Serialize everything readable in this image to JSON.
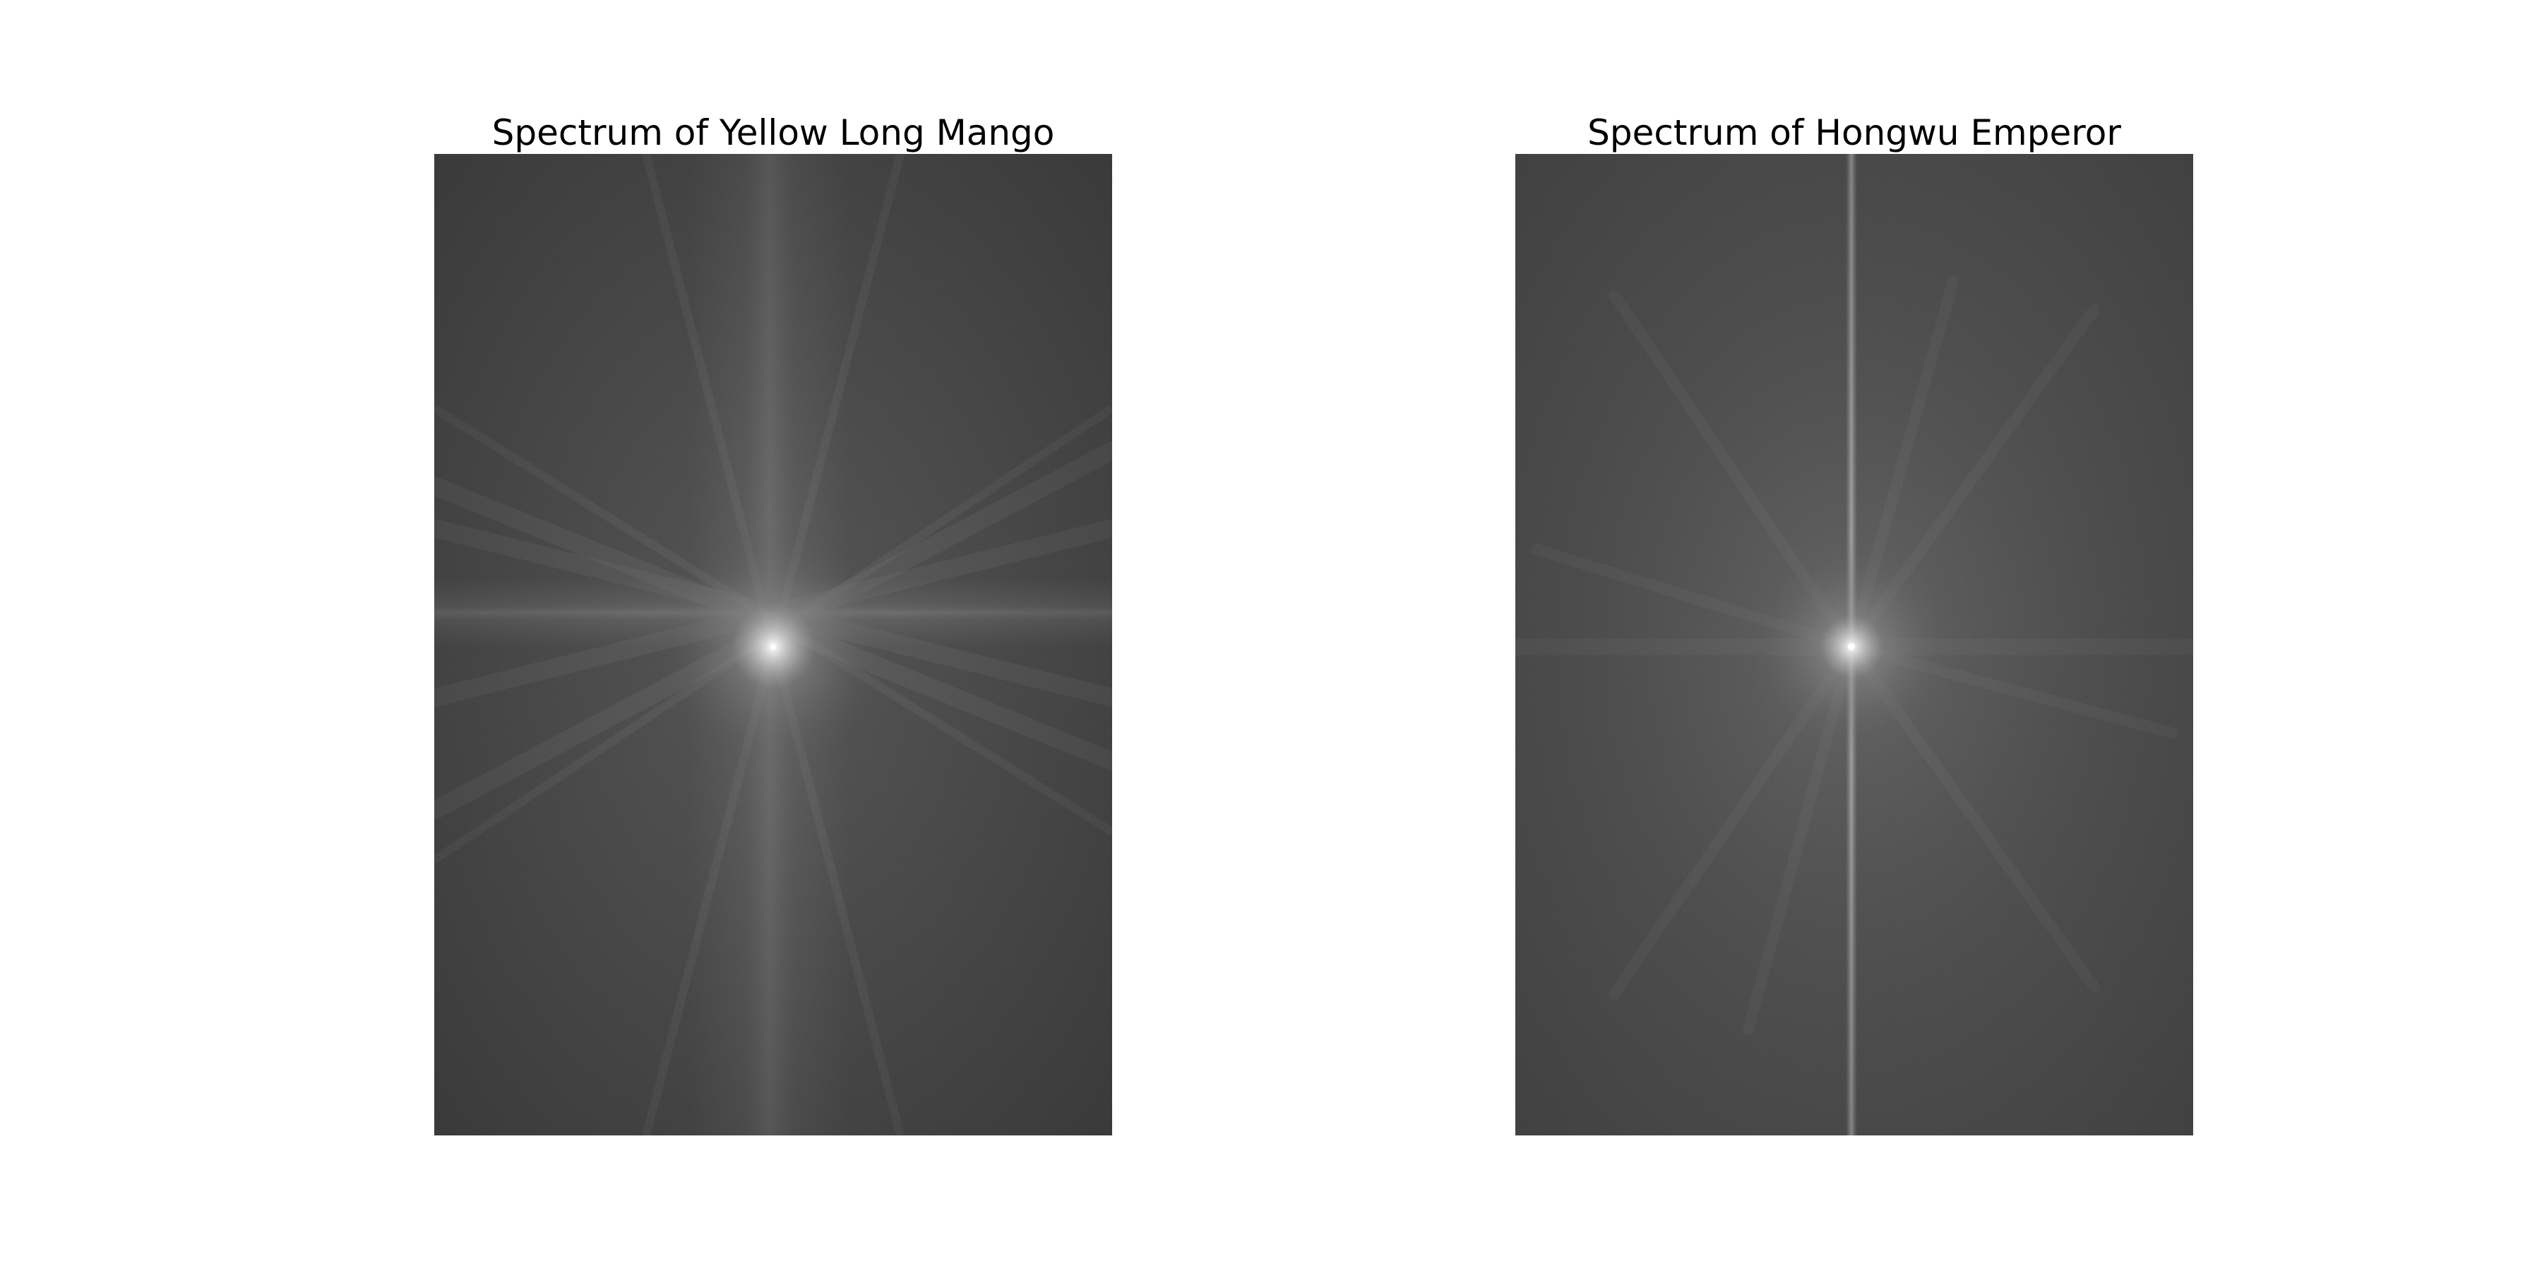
{
  "figures": [
    {
      "title": "Spectrum of Yellow Long Mango",
      "image": "fourier-magnitude-spectrum",
      "colormap": "grayscale",
      "features": {
        "vertical_band": "wide, centered",
        "horizontal_band": "wide, centered",
        "diagonal_streaks": true
      }
    },
    {
      "title": "Spectrum of Hongwu Emperor",
      "image": "fourier-magnitude-spectrum",
      "colormap": "grayscale",
      "features": {
        "vertical_band": "thin bright line, centered",
        "horizontal_band": "faint",
        "radial_rays": true
      }
    }
  ],
  "colors": {
    "background": "#ffffff",
    "title": "#000000",
    "spectrum_base": "#3a3a3a",
    "spectrum_peak": "#ffffff"
  }
}
